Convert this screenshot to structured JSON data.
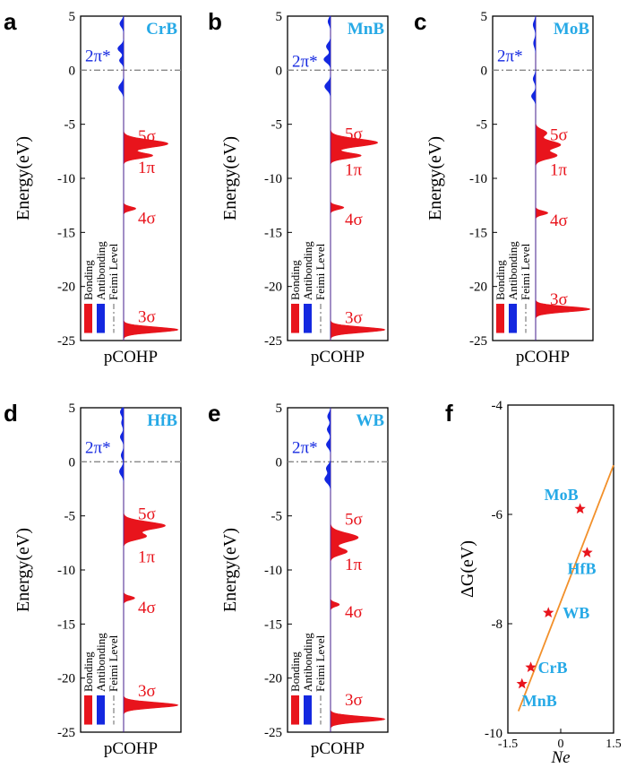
{
  "colors": {
    "bonding": "#e8141c",
    "antibonding": "#1428e0",
    "compound_label": "#26a9e6",
    "fermi": "#888888",
    "fit_line": "#f2902a",
    "star": "#e8141c",
    "axis": "#000000"
  },
  "chart_data": [
    {
      "type": "area",
      "panel": "a",
      "compound": "CrB",
      "title": "CrB",
      "xlabel": "pCOHP",
      "ylabel": "Energy(eV)",
      "ylim": [
        -25,
        5
      ],
      "yticks": [
        5,
        0,
        -5,
        -10,
        -15,
        -20,
        -25
      ],
      "fermi_level": 0,
      "legend_labels": [
        "Bonding",
        "Antibonding",
        "Feimi Level"
      ],
      "orbital_labels": [
        {
          "text": "2π*",
          "energy": 1.3,
          "kind": "antibonding"
        },
        {
          "text": "5σ",
          "energy": -6.1,
          "kind": "bonding"
        },
        {
          "text": "1π",
          "energy": -9.0,
          "kind": "bonding"
        },
        {
          "text": "4σ",
          "energy": -13.7,
          "kind": "bonding"
        },
        {
          "text": "3σ",
          "energy": -22.8,
          "kind": "bonding"
        }
      ],
      "bonding_peaks": [
        {
          "energy": -6.8,
          "amplitude": 0.8,
          "width": 0.35
        },
        {
          "energy": -7.9,
          "amplitude": 0.52,
          "width": 0.25
        },
        {
          "energy": -12.8,
          "amplitude": 0.22,
          "width": 0.18
        },
        {
          "energy": -24.0,
          "amplitude": 0.98,
          "width": 0.25
        }
      ],
      "antibonding_peaks": [
        {
          "energy": 4.3,
          "amplitude": 0.09,
          "width": 0.3
        },
        {
          "energy": 2.0,
          "amplitude": 0.14,
          "width": 0.3
        },
        {
          "energy": 0.9,
          "amplitude": 0.1,
          "width": 0.25
        },
        {
          "energy": -1.6,
          "amplitude": 0.12,
          "width": 0.35
        }
      ]
    },
    {
      "type": "area",
      "panel": "b",
      "compound": "MnB",
      "title": "MnB",
      "xlabel": "pCOHP",
      "ylabel": "Energy(eV)",
      "ylim": [
        -25,
        5
      ],
      "yticks": [
        5,
        0,
        -5,
        -10,
        -15,
        -20,
        -25
      ],
      "fermi_level": 0,
      "legend_labels": [
        "Bonding",
        "Antibonding",
        "Feimi Level"
      ],
      "orbital_labels": [
        {
          "text": "2π*",
          "energy": 0.8,
          "kind": "antibonding"
        },
        {
          "text": "5σ",
          "energy": -5.9,
          "kind": "bonding"
        },
        {
          "text": "1π",
          "energy": -9.2,
          "kind": "bonding"
        },
        {
          "text": "4σ",
          "energy": -13.8,
          "kind": "bonding"
        },
        {
          "text": "3σ",
          "energy": -22.9,
          "kind": "bonding"
        }
      ],
      "bonding_peaks": [
        {
          "energy": -6.7,
          "amplitude": 0.85,
          "width": 0.35
        },
        {
          "energy": -7.9,
          "amplitude": 0.55,
          "width": 0.25
        },
        {
          "energy": -12.7,
          "amplitude": 0.24,
          "width": 0.18
        },
        {
          "energy": -24.0,
          "amplitude": 0.98,
          "width": 0.25
        }
      ],
      "antibonding_peaks": [
        {
          "energy": 4.5,
          "amplitude": 0.06,
          "width": 0.3
        },
        {
          "energy": 2.2,
          "amplitude": 0.1,
          "width": 0.3
        },
        {
          "energy": 1.0,
          "amplitude": 0.16,
          "width": 0.3
        },
        {
          "energy": -1.5,
          "amplitude": 0.14,
          "width": 0.35
        }
      ]
    },
    {
      "type": "area",
      "panel": "c",
      "compound": "MoB",
      "title": "MoB",
      "xlabel": "pCOHP",
      "ylabel": "Energy(eV)",
      "ylim": [
        -25,
        5
      ],
      "yticks": [
        5,
        0,
        -5,
        -10,
        -15,
        -20,
        -25
      ],
      "fermi_level": 0,
      "legend_labels": [
        "Bonding",
        "Antibonding",
        "Feimi Level"
      ],
      "orbital_labels": [
        {
          "text": "2π*",
          "energy": 1.3,
          "kind": "antibonding"
        },
        {
          "text": "5σ",
          "energy": -6.0,
          "kind": "bonding"
        },
        {
          "text": "1π",
          "energy": -9.2,
          "kind": "bonding"
        },
        {
          "text": "4σ",
          "energy": -13.9,
          "kind": "bonding"
        },
        {
          "text": "3σ",
          "energy": -21.2,
          "kind": "bonding"
        }
      ],
      "bonding_peaks": [
        {
          "energy": -5.8,
          "amplitude": 0.2,
          "width": 0.3
        },
        {
          "energy": -6.9,
          "amplitude": 0.45,
          "width": 0.35
        },
        {
          "energy": -7.9,
          "amplitude": 0.38,
          "width": 0.3
        },
        {
          "energy": -13.2,
          "amplitude": 0.22,
          "width": 0.18
        },
        {
          "energy": -22.1,
          "amplitude": 0.98,
          "width": 0.25
        }
      ],
      "antibonding_peaks": [
        {
          "energy": 4.2,
          "amplitude": 0.06,
          "width": 0.35
        },
        {
          "energy": 2.5,
          "amplitude": 0.05,
          "width": 0.35
        },
        {
          "energy": -0.8,
          "amplitude": 0.06,
          "width": 0.3
        },
        {
          "energy": -2.4,
          "amplitude": 0.1,
          "width": 0.3
        }
      ]
    },
    {
      "type": "area",
      "panel": "d",
      "compound": "HfB",
      "title": "HfB",
      "xlabel": "pCOHP",
      "ylabel": "Energy(eV)",
      "ylim": [
        -25,
        5
      ],
      "yticks": [
        5,
        0,
        -5,
        -10,
        -15,
        -20,
        -25
      ],
      "fermi_level": 0,
      "legend_labels": [
        "Bonding",
        "Antibonding",
        "Feimi Level"
      ],
      "orbital_labels": [
        {
          "text": "2π*",
          "energy": 1.3,
          "kind": "antibonding"
        },
        {
          "text": "5σ",
          "energy": -4.8,
          "kind": "bonding"
        },
        {
          "text": "1π",
          "energy": -8.8,
          "kind": "bonding"
        },
        {
          "text": "4σ",
          "energy": -13.5,
          "kind": "bonding"
        },
        {
          "text": "3σ",
          "energy": -21.2,
          "kind": "bonding"
        }
      ],
      "bonding_peaks": [
        {
          "energy": -5.9,
          "amplitude": 0.75,
          "width": 0.35
        },
        {
          "energy": -6.9,
          "amplitude": 0.4,
          "width": 0.3
        },
        {
          "energy": -12.6,
          "amplitude": 0.2,
          "width": 0.18
        },
        {
          "energy": -22.5,
          "amplitude": 0.98,
          "width": 0.25
        }
      ],
      "antibonding_peaks": [
        {
          "energy": 4.6,
          "amplitude": 0.08,
          "width": 0.3
        },
        {
          "energy": 3.6,
          "amplitude": 0.05,
          "width": 0.3
        },
        {
          "energy": 2.3,
          "amplitude": 0.08,
          "width": 0.3
        },
        {
          "energy": 0.6,
          "amplitude": 0.06,
          "width": 0.3
        },
        {
          "energy": -0.9,
          "amplitude": 0.1,
          "width": 0.35
        }
      ]
    },
    {
      "type": "area",
      "panel": "e",
      "compound": "WB",
      "title": "WB",
      "xlabel": "pCOHP",
      "ylabel": "Energy(eV)",
      "ylim": [
        -25,
        5
      ],
      "yticks": [
        5,
        0,
        -5,
        -10,
        -15,
        -20,
        -25
      ],
      "fermi_level": 0,
      "legend_labels": [
        "Bonding",
        "Antibonding",
        "Feimi Level"
      ],
      "orbital_labels": [
        {
          "text": "2π*",
          "energy": 1.3,
          "kind": "antibonding"
        },
        {
          "text": "5σ",
          "energy": -5.3,
          "kind": "bonding"
        },
        {
          "text": "1π",
          "energy": -9.5,
          "kind": "bonding"
        },
        {
          "text": "4σ",
          "energy": -13.9,
          "kind": "bonding"
        },
        {
          "text": "3σ",
          "energy": -22.0,
          "kind": "bonding"
        }
      ],
      "bonding_peaks": [
        {
          "energy": -7.0,
          "amplitude": 0.5,
          "width": 0.4
        },
        {
          "energy": -8.3,
          "amplitude": 0.3,
          "width": 0.3
        },
        {
          "energy": -13.2,
          "amplitude": 0.16,
          "width": 0.18
        },
        {
          "energy": -23.8,
          "amplitude": 0.98,
          "width": 0.25
        }
      ],
      "antibonding_peaks": [
        {
          "energy": 4.2,
          "amplitude": 0.07,
          "width": 0.3
        },
        {
          "energy": 3.0,
          "amplitude": 0.08,
          "width": 0.3
        },
        {
          "energy": 1.6,
          "amplitude": 0.1,
          "width": 0.3
        },
        {
          "energy": -0.6,
          "amplitude": 0.1,
          "width": 0.3
        },
        {
          "energy": -1.6,
          "amplitude": 0.14,
          "width": 0.35
        }
      ]
    },
    {
      "type": "scatter",
      "panel": "f",
      "title": "",
      "xlabel": "Ne",
      "ylabel": "ΔG(eV)",
      "xlim": [
        -1.5,
        1.5
      ],
      "ylim": [
        -10,
        -4
      ],
      "xticks": [
        -1.5,
        0,
        1.5
      ],
      "xtick_labels": [
        "-1.5",
        "0",
        "1.5"
      ],
      "yticks": [
        -4,
        -6,
        -8,
        -10
      ],
      "ytick_labels": [
        "-4",
        "-6",
        "-8",
        "-10"
      ],
      "points": [
        {
          "label": "MoB",
          "x": 0.55,
          "y": -5.9
        },
        {
          "label": "HfB",
          "x": 0.75,
          "y": -6.7
        },
        {
          "label": "WB",
          "x": -0.35,
          "y": -7.8
        },
        {
          "label": "CrB",
          "x": -0.85,
          "y": -8.8
        },
        {
          "label": "MnB",
          "x": -1.1,
          "y": -9.1
        }
      ],
      "fit_line": {
        "x": [
          -1.2,
          1.5
        ],
        "y": [
          -9.6,
          -5.1
        ]
      }
    }
  ]
}
